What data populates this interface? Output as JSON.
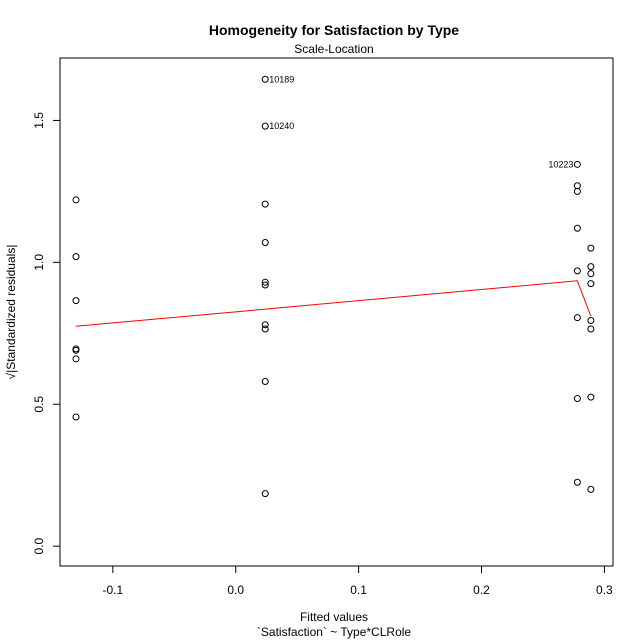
{
  "chart_data": {
    "type": "scatter",
    "title": "Homogeneity for Satisfaction by Type",
    "subtitle": "Scale-Location",
    "xlabel": "Fitted values",
    "xlabel_sub": "`Satisfaction` ~ Type*CLRole",
    "ylabel": "√|Standardized residuals|",
    "xlim": [
      -0.143,
      0.307
    ],
    "ylim": [
      -0.07,
      1.72
    ],
    "x_ticks": [
      {
        "value": -0.1,
        "label": "-0.1"
      },
      {
        "value": 0.0,
        "label": "0.0"
      },
      {
        "value": 0.1,
        "label": "0.1"
      },
      {
        "value": 0.2,
        "label": "0.2"
      },
      {
        "value": 0.3,
        "label": "0.3"
      }
    ],
    "y_ticks": [
      {
        "value": 0.0,
        "label": "0.0"
      },
      {
        "value": 0.5,
        "label": "0.5"
      },
      {
        "value": 1.0,
        "label": "1.0"
      },
      {
        "value": 1.5,
        "label": "1.5"
      }
    ],
    "grid": false,
    "points": [
      {
        "x": -0.13,
        "y": 1.22
      },
      {
        "x": -0.13,
        "y": 1.02
      },
      {
        "x": -0.13,
        "y": 0.865
      },
      {
        "x": -0.13,
        "y": 0.695
      },
      {
        "x": -0.13,
        "y": 0.69
      },
      {
        "x": -0.13,
        "y": 0.66
      },
      {
        "x": -0.13,
        "y": 0.455
      },
      {
        "x": 0.024,
        "y": 1.645
      },
      {
        "x": 0.024,
        "y": 1.48
      },
      {
        "x": 0.024,
        "y": 1.205
      },
      {
        "x": 0.024,
        "y": 1.07
      },
      {
        "x": 0.024,
        "y": 0.93
      },
      {
        "x": 0.024,
        "y": 0.92
      },
      {
        "x": 0.024,
        "y": 0.78
      },
      {
        "x": 0.024,
        "y": 0.765
      },
      {
        "x": 0.024,
        "y": 0.58
      },
      {
        "x": 0.024,
        "y": 0.185
      },
      {
        "x": 0.278,
        "y": 1.345
      },
      {
        "x": 0.278,
        "y": 1.27
      },
      {
        "x": 0.278,
        "y": 1.25
      },
      {
        "x": 0.278,
        "y": 1.12
      },
      {
        "x": 0.278,
        "y": 0.97
      },
      {
        "x": 0.278,
        "y": 0.805
      },
      {
        "x": 0.278,
        "y": 0.52
      },
      {
        "x": 0.278,
        "y": 0.225
      },
      {
        "x": 0.289,
        "y": 1.05
      },
      {
        "x": 0.289,
        "y": 0.985
      },
      {
        "x": 0.289,
        "y": 0.96
      },
      {
        "x": 0.289,
        "y": 0.925
      },
      {
        "x": 0.289,
        "y": 0.795
      },
      {
        "x": 0.289,
        "y": 0.765
      },
      {
        "x": 0.289,
        "y": 0.525
      },
      {
        "x": 0.289,
        "y": 0.2
      }
    ],
    "point_labels": [
      {
        "x": 0.024,
        "y": 1.645,
        "text": "10189",
        "side": "right"
      },
      {
        "x": 0.024,
        "y": 1.48,
        "text": "10240",
        "side": "right"
      },
      {
        "x": 0.278,
        "y": 1.345,
        "text": "10223",
        "side": "left"
      }
    ],
    "smooth_line": {
      "color": "#ff0000",
      "points": [
        {
          "x": -0.13,
          "y": 0.775
        },
        {
          "x": 0.024,
          "y": 0.835
        },
        {
          "x": 0.278,
          "y": 0.935
        },
        {
          "x": 0.289,
          "y": 0.81
        }
      ]
    },
    "point_color": "#000000"
  }
}
